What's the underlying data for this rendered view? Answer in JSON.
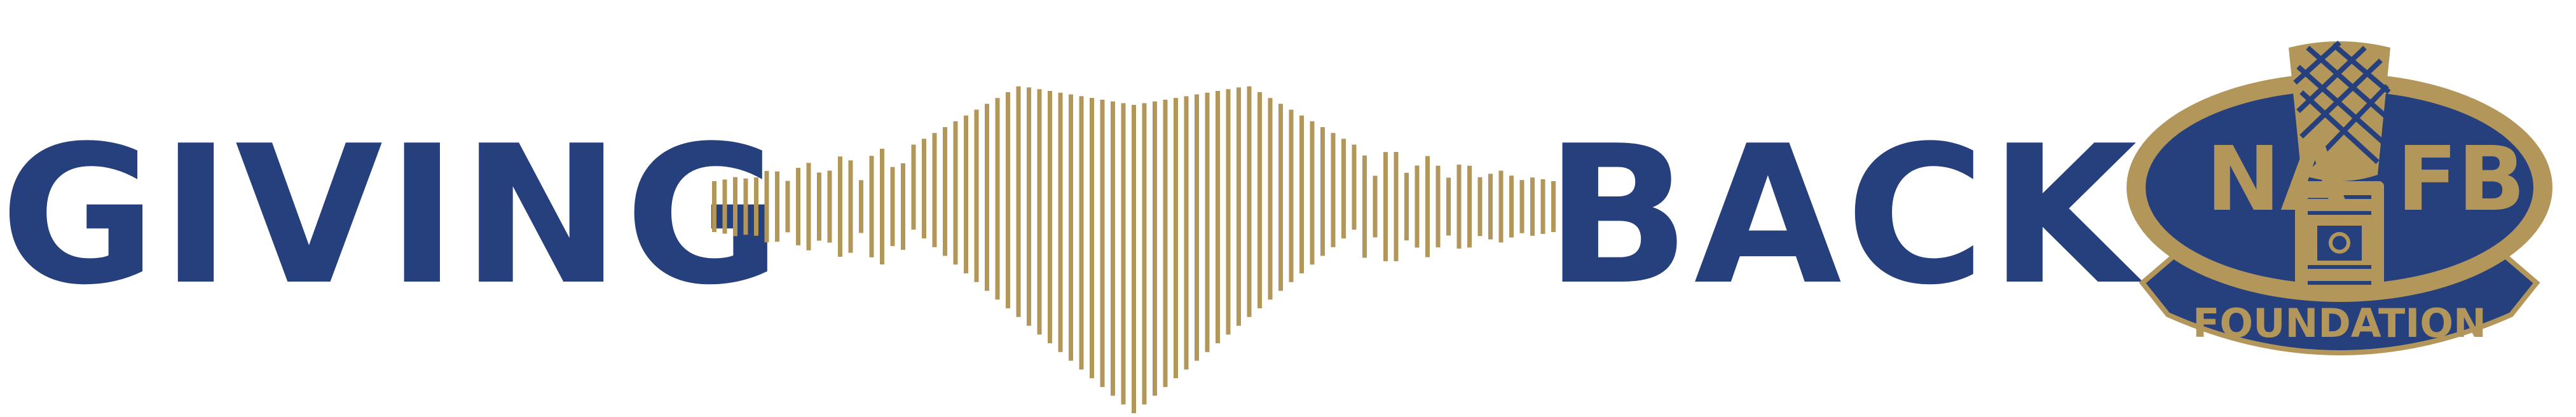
{
  "banner": {
    "word_left": "GIVING",
    "word_right": "BACK"
  },
  "logo": {
    "left_letters": "NA",
    "right_letters": "FB",
    "ribbon_text": "FOUNDATION"
  },
  "colors": {
    "navy": "#263f7d",
    "gold": "#b3965a",
    "dark_navy": "#1b2f66"
  },
  "icons": {
    "waveform": "heart-sound-wave-icon",
    "microphone": "vintage-microphone-icon"
  }
}
